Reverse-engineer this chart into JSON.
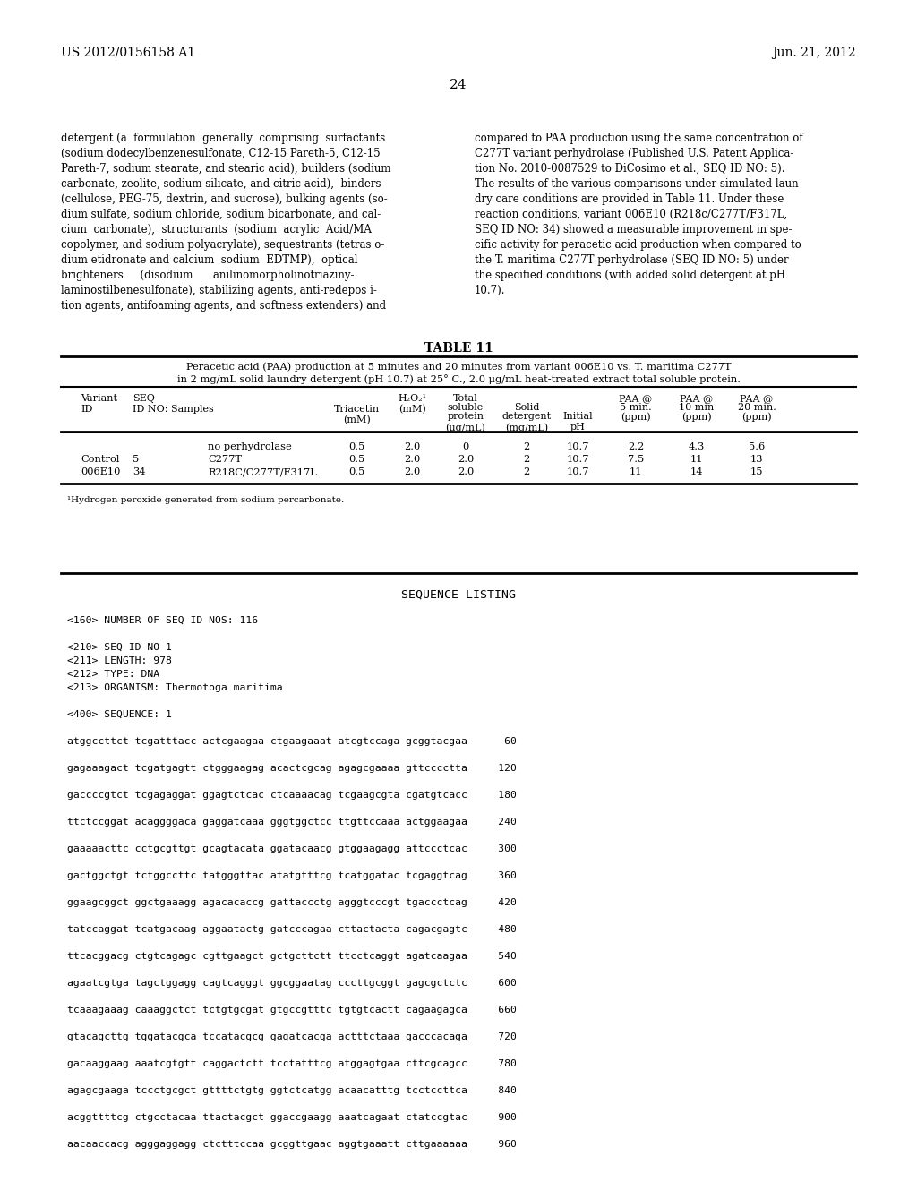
{
  "page_num": "24",
  "left_header": "US 2012/0156158 A1",
  "right_header": "Jun. 21, 2012",
  "bg_color": "#ffffff",
  "left_col_text": [
    "detergent (a  formulation  generally  comprising  surfactants",
    "(sodium dodecylbenzenesulfonate, C12-15 Pareth-5, C12-15",
    "Pareth-7, sodium stearate, and stearic acid), builders (sodium",
    "carbonate, zeolite, sodium silicate, and citric acid),  binders",
    "(cellulose, PEG-75, dextrin, and sucrose), bulking agents (so-",
    "dium sulfate, sodium chloride, sodium bicarbonate, and cal-",
    "cium  carbonate),  structurants  (sodium  acrylic  Acid/MA",
    "copolymer, and sodium polyacrylate), sequestrants (tetras o-",
    "dium etidronate and calcium  sodium  EDTMP),  optical",
    "brighteners     (disodium      anilinomorpholinotriaziny-",
    "laminostilbenesulfonate), stabilizing agents, anti-redepos i-",
    "tion agents, antifoaming agents, and softness extenders) and"
  ],
  "right_col_text": [
    "compared to PAA production using the same concentration of",
    "C277T variant perhydrolase (Published U.S. Patent Applica-",
    "tion No. 2010-0087529 to DiCosimo et al., SEQ ID NO: 5).",
    "The results of the various comparisons under simulated laun-",
    "dry care conditions are provided in Table 11. Under these",
    "reaction conditions, variant 006E10 (R218c/C277T/F317L,",
    "SEQ ID NO: 34) showed a measurable improvement in spe-",
    "cific activity for peracetic acid production when compared to",
    "the T. maritima C277T perhydrolase (SEQ ID NO: 5) under",
    "the specified conditions (with added solid detergent at pH",
    "10.7)."
  ],
  "table_title": "TABLE 11",
  "table_subtitle_line1": "Peracetic acid (PAA) production at 5 minutes and 20 minutes from variant 006E10 vs. T. maritima C277T",
  "table_subtitle_line2": "in 2 mg/mL solid laundry detergent (pH 10.7) at 25° C., 2.0 μg/mL heat-treated extract total soluble protein.",
  "table_col_headers": [
    [
      "Variant",
      "SEQ",
      "",
      "Triacetin",
      "H₂O₂¹",
      "Total\nsoluble\nprotein",
      "Solid\n\ndetergent",
      "",
      "PAA @\n5 min.",
      "PAA @\n10 min",
      "PAA @\n20 min."
    ],
    [
      "ID",
      "ID NO: Samples",
      "",
      "(mM)",
      "(mM)",
      "(μg/mL)",
      "(mg/mL)",
      "Initial\npH",
      "(ppm)",
      "(ppm)",
      "(ppm)"
    ]
  ],
  "table_rows": [
    [
      "",
      "",
      "no perhydrolase",
      "0.5",
      "2.0",
      "0",
      "2",
      "10.7",
      "2.2",
      "4.3",
      "5.6"
    ],
    [
      "Control",
      "5",
      "C277T",
      "0.5",
      "2.0",
      "2.0",
      "2",
      "10.7",
      "7.5",
      "11",
      "13"
    ],
    [
      "006E10",
      "34",
      "R218C/C277T/F317L",
      "0.5",
      "2.0",
      "2.0",
      "2",
      "10.7",
      "11",
      "14",
      "15"
    ]
  ],
  "table_footnote": "¹Hydrogen peroxide generated from sodium percarbonate.",
  "sequence_listing_title": "SEQUENCE LISTING",
  "sequence_lines": [
    "<160> NUMBER OF SEQ ID NOS: 116",
    "",
    "<210> SEQ ID NO 1",
    "<211> LENGTH: 978",
    "<212> TYPE: DNA",
    "<213> ORGANISM: Thermotoga maritima",
    "",
    "<400> SEQUENCE: 1",
    "",
    "atggccttct tcgatttacc actcgaagaa ctgaagaaat atcgtccaga gcggtacgaa      60",
    "",
    "gagaaagact tcgatgagtt ctgggaagag acactcgcag agagcgaaaa gttcccctta     120",
    "",
    "gaccccgtct tcgagaggat ggagtctcac ctcaaaacag tcgaagcgta cgatgtcacc     180",
    "",
    "ttctccggat acaggggaca gaggatcaaa gggtggctcc ttgttccaaa actggaagaa     240",
    "",
    "gaaaaacttc cctgcgttgt gcagtacata ggatacaacg gtggaagagg attccctcac     300",
    "",
    "gactggctgt tctggccttc tatgggttac atatgtttcg tcatggatac tcgaggtcag     360",
    "",
    "ggaagcggct ggctgaaagg agacacaccg gattaccctg agggtcccgt tgaccctcag     420",
    "",
    "tatccaggat tcatgacaag aggaatactg gatcccagaa cttactacta cagacgagtc     480",
    "",
    "ttcacggacg ctgtcagagc cgttgaagct gctgcttctt ttcctcaggt agatcaagaa     540",
    "",
    "agaatcgtga tagctggagg cagtcagggt ggcggaatag cccttgcggt gagcgctctc     600",
    "",
    "tcaaagaaag caaaggctct tctgtgcgat gtgccgtttc tgtgtcactt cagaagagca     660",
    "",
    "gtacagcttg tggatacgca tccatacgcg gagatcacga actttctaaa gacccacaga     720",
    "",
    "gacaaggaag aaatcgtgtt caggactctt tcctatttcg atggagtgaa cttcgcagcc     780",
    "",
    "agagcgaaga tccctgcgct gttttctgtg ggtctcatgg acaacatttg tcctccttca     840",
    "",
    "acggttttcg ctgcctacaa ttactacgct ggaccgaagg aaatcagaat ctatccgtac     900",
    "",
    "aacaaccacg agggaggagg ctctttccaa gcggttgaac aggtgaaatt cttgaaaaaa     960"
  ]
}
